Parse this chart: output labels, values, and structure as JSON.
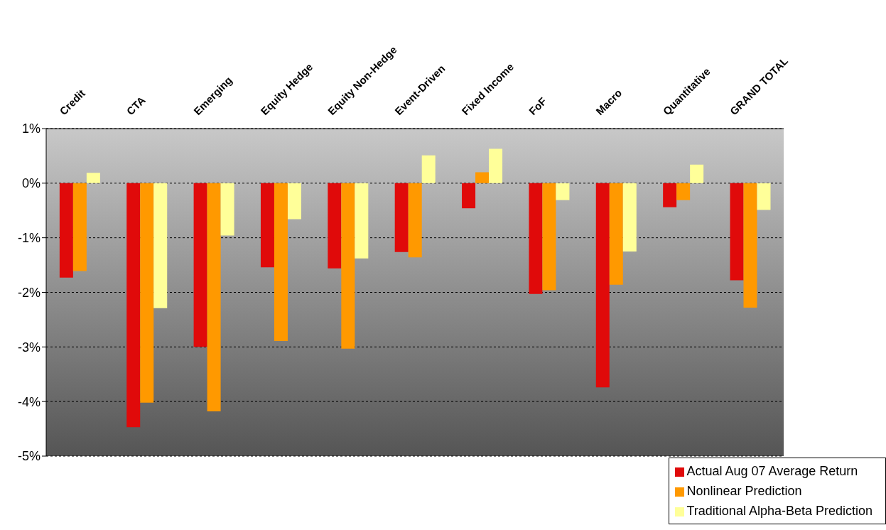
{
  "chart_data": {
    "type": "bar",
    "categories": [
      "Credit",
      "CTA",
      "Emerging",
      "Equity Hedge",
      "Equity Non-Hedge",
      "Event-Driven",
      "Fixed Income",
      "FoF",
      "Macro",
      "Quantitative",
      "GRAND TOTAL"
    ],
    "series": [
      {
        "name": "Actual Aug 07 Average Return",
        "color": "#e00a0a",
        "values": [
          -1.73,
          -4.47,
          -3.0,
          -1.54,
          -1.56,
          -1.26,
          -0.46,
          -2.03,
          -3.74,
          -0.44,
          -1.78
        ]
      },
      {
        "name": "Nonlinear Prediction",
        "color": "#ff9900",
        "values": [
          -1.61,
          -4.02,
          -4.18,
          -2.89,
          -3.03,
          -1.36,
          0.2,
          -1.96,
          -1.86,
          -0.31,
          -2.28
        ]
      },
      {
        "name": "Traditional Alpha-Beta Prediction",
        "color": "#ffff99",
        "values": [
          0.19,
          -2.29,
          -0.96,
          -0.66,
          -1.38,
          0.51,
          0.63,
          -0.31,
          -1.25,
          0.34,
          -0.49
        ]
      }
    ],
    "ylim": [
      -5,
      1
    ],
    "yticks": [
      {
        "value": 1,
        "label": "1%"
      },
      {
        "value": 0,
        "label": "0%"
      },
      {
        "value": -1,
        "label": "-1%"
      },
      {
        "value": -2,
        "label": "-2%"
      },
      {
        "value": -3,
        "label": "-3%"
      },
      {
        "value": -4,
        "label": "-4%"
      },
      {
        "value": -5,
        "label": "-5%"
      }
    ],
    "grid": "y",
    "legend": "bottom right"
  }
}
